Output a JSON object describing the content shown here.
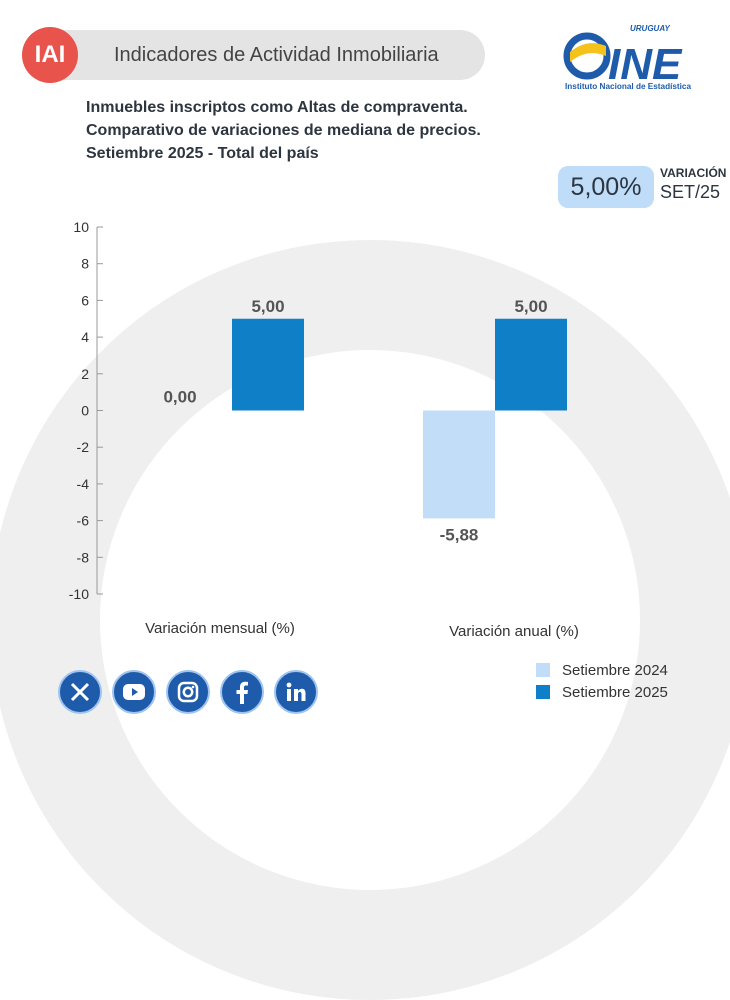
{
  "header": {
    "badge": "IAI",
    "title": "Indicadores de Actividad Inmobiliaria"
  },
  "logo": {
    "top": "URUGUAY",
    "main": "INE",
    "sub": "Instituto Nacional de Estadística",
    "colors": {
      "blue": "#1e5cab",
      "yellow": "#f4c21b"
    }
  },
  "subtitle": {
    "line1": "Inmuebles inscriptos como Altas de compraventa.",
    "line2": "Comparativo de variaciones de mediana de precios.",
    "line3": "Setiembre 2025 - Total del país"
  },
  "variation": {
    "value": "5,00%",
    "label_top": "VARIACIÓN",
    "label_bottom": "SET/25"
  },
  "chart_data": {
    "type": "bar",
    "categories": [
      "Variación mensual (%)",
      "Variación anual (%)"
    ],
    "series": [
      {
        "name": "Setiembre 2024",
        "values": [
          0.0,
          -5.88
        ],
        "labels": [
          "0,00",
          "-5,88"
        ],
        "color": "#c2ddf8"
      },
      {
        "name": "Setiembre 2025",
        "values": [
          5.0,
          5.0
        ],
        "labels": [
          "5,00",
          "5,00"
        ],
        "color": "#0f7fc8"
      }
    ],
    "yticks": [
      "10",
      "8",
      "6",
      "4",
      "2",
      "0",
      "-2",
      "-4",
      "-6",
      "-8",
      "-10"
    ],
    "ylim": [
      -10,
      10
    ],
    "legend": "bottom-right",
    "grid": false
  },
  "social": [
    "x-icon",
    "youtube-icon",
    "instagram-icon",
    "facebook-icon",
    "linkedin-icon"
  ]
}
